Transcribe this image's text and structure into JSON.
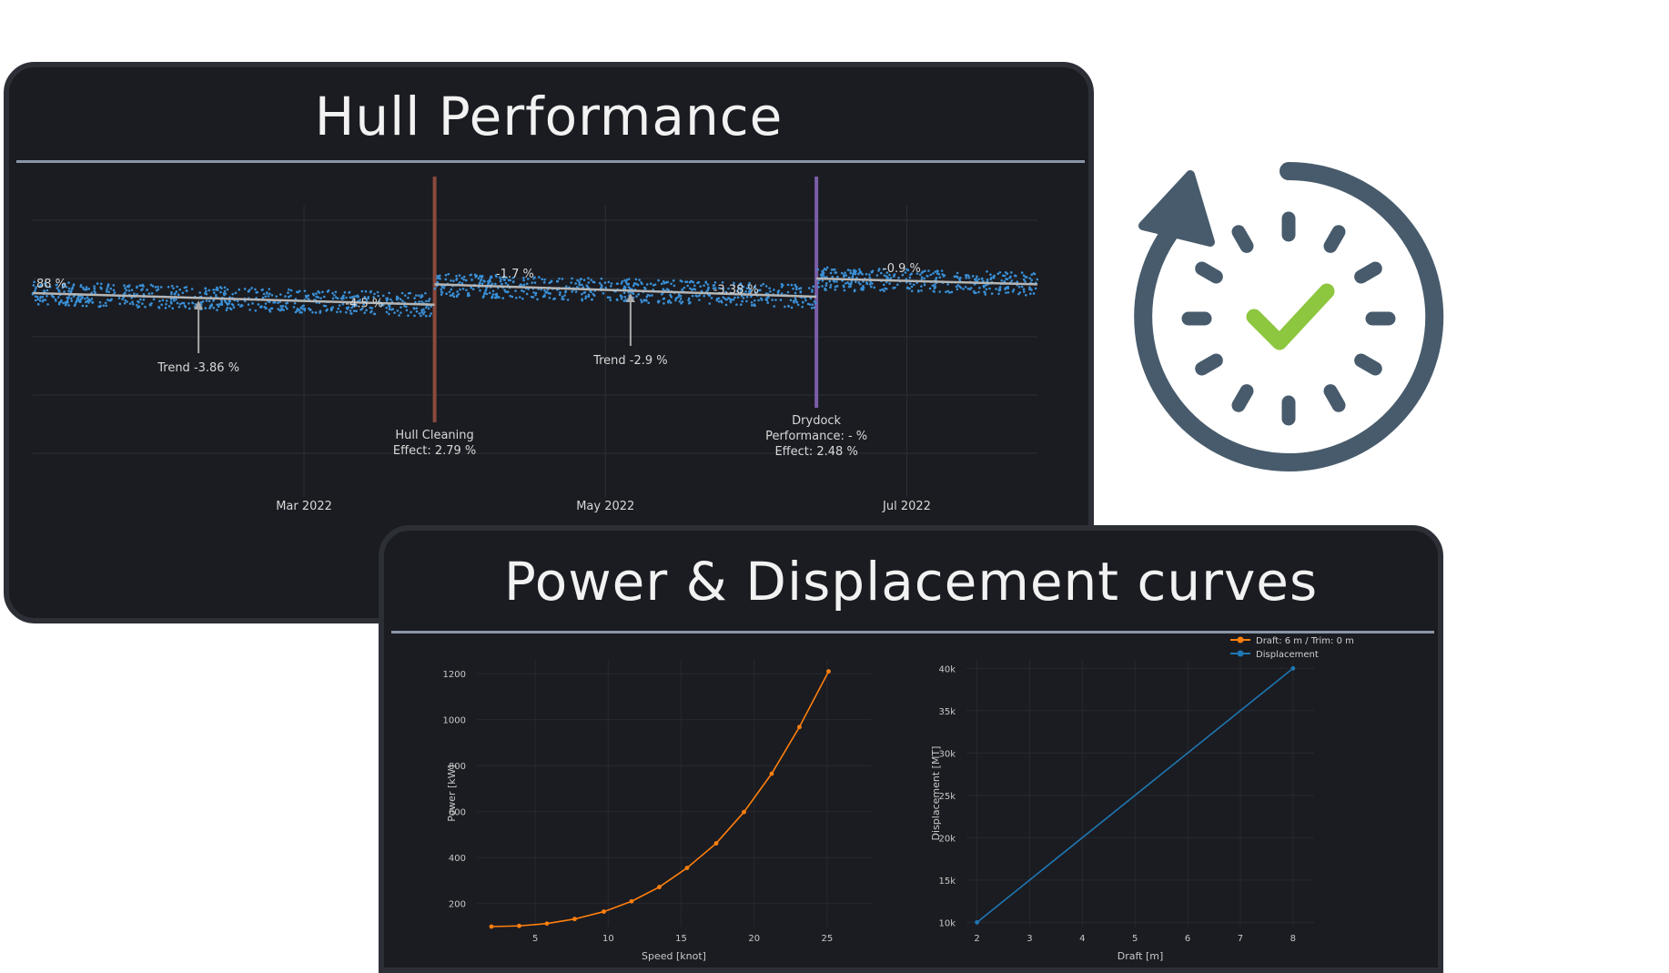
{
  "hull_card": {
    "title": "Hull Performance"
  },
  "curves_card": {
    "title": "Power & Displacement curves"
  },
  "icons": {
    "refresh": "refresh-check-icon",
    "check_color": "#8dc63f",
    "ring_color": "#475b6c"
  },
  "chart_data": [
    {
      "type": "scatter",
      "title": "",
      "x_ticks": [
        "Mar 2022",
        "May 2022",
        "Jul 2022"
      ],
      "y_range": [
        60,
        100
      ],
      "series": [
        {
          "segment": 1,
          "x": [
            0,
            0.4
          ],
          "start": 88,
          "end": 86.4
        },
        {
          "segment": 2,
          "x": [
            0.4,
            0.78
          ],
          "start": 89.2,
          "end": 87.5
        },
        {
          "segment": 3,
          "x": [
            0.78,
            1.0
          ],
          "start": 90.0,
          "end": 89.2
        }
      ],
      "annotations": [
        {
          "text": "88 %"
        },
        {
          "text": "-4.5 %"
        },
        {
          "text": "-1.7 %"
        },
        {
          "text": "-3.38 %"
        },
        {
          "text": "-0.9 %"
        },
        {
          "text": "Trend -3.86 %"
        },
        {
          "text": "Trend -2.9 %"
        }
      ],
      "events": [
        {
          "name": "Hull Cleaning",
          "lines": [
            "Hull Cleaning",
            "Effect: 2.79 %"
          ],
          "color": "#8a4a3c"
        },
        {
          "name": "Drydock",
          "lines": [
            "Drydock",
            "Performance: - %",
            "Effect: 2.48 %"
          ],
          "color": "#7b5ea7"
        }
      ],
      "dot_color": "#3a8fd6",
      "trend_color": "#b5b5b5"
    },
    {
      "type": "line",
      "xlabel": "Speed [knot]",
      "ylabel": "Power [kW]",
      "xlim": [
        1,
        28
      ],
      "ylim": [
        100,
        1260
      ],
      "x_ticks": [
        5,
        10,
        15,
        20,
        25
      ],
      "y_ticks": [
        200,
        400,
        600,
        800,
        1000,
        1200
      ],
      "series": [
        {
          "name": "Draft: 6 m / Trim: 0 m",
          "color": "#ff7f0e",
          "x": [
            2,
            3.9,
            5.8,
            7.7,
            9.7,
            11.6,
            13.5,
            15.4,
            17.4,
            19.3,
            21.2,
            23.1,
            25.1
          ],
          "y": [
            100,
            103,
            113,
            133,
            165,
            210,
            272,
            355,
            462,
            598,
            765,
            968,
            1210
          ]
        }
      ]
    },
    {
      "type": "line",
      "xlabel": "Draft [m]",
      "ylabel": "Displacement [MT]",
      "xlim": [
        1.8,
        8.4
      ],
      "ylim": [
        9500,
        41000
      ],
      "x_ticks": [
        2,
        3,
        4,
        5,
        6,
        7,
        8
      ],
      "y_ticks": [
        10000,
        15000,
        20000,
        25000,
        30000,
        35000,
        40000
      ],
      "y_tick_labels": [
        "10k",
        "15k",
        "20k",
        "25k",
        "30k",
        "35k",
        "40k"
      ],
      "series": [
        {
          "name": "Displacement",
          "color": "#1f77b4",
          "x": [
            2,
            8
          ],
          "y": [
            10000,
            40000
          ]
        }
      ],
      "legend": {
        "position": "top-right",
        "entries": [
          "Draft: 6 m / Trim: 0 m",
          "Displacement"
        ],
        "colors": [
          "#ff7f0e",
          "#1f77b4"
        ]
      }
    }
  ]
}
